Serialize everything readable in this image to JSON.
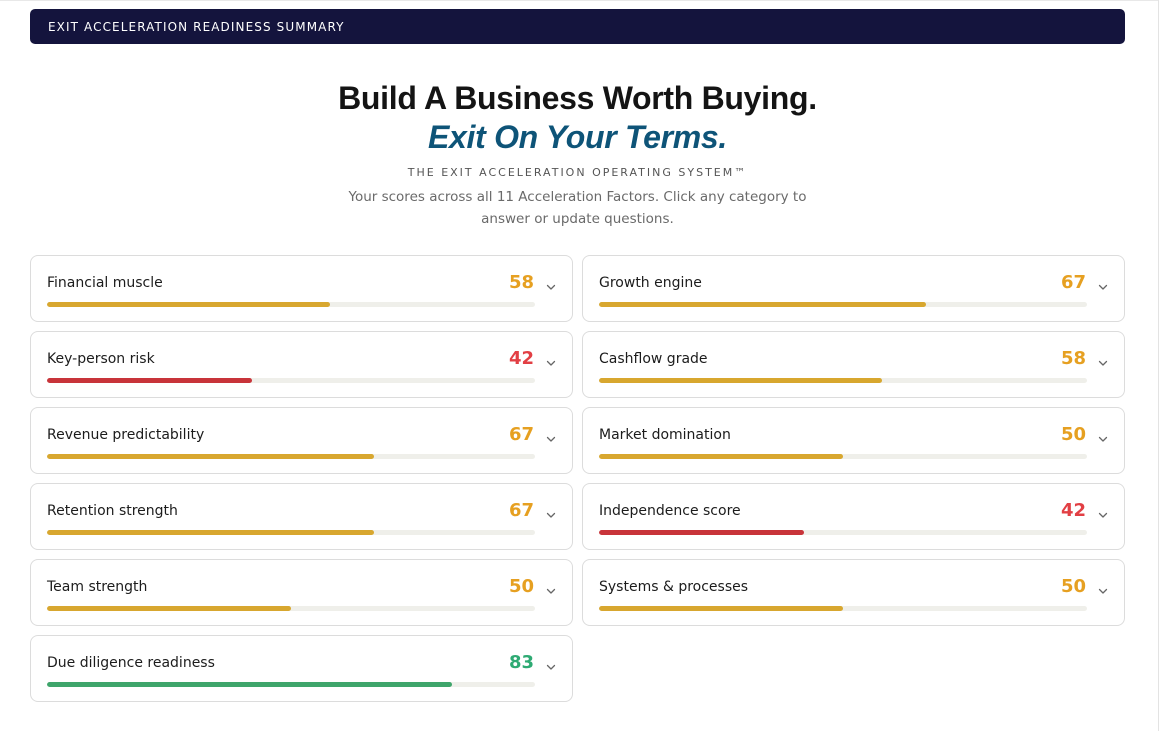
{
  "banner": {
    "title": "EXIT ACCELERATION READINESS SUMMARY"
  },
  "hero": {
    "headline": "Build A Business Worth Buying.",
    "subheadline": "Exit On Your Terms.",
    "eyebrow": "THE EXIT ACCELERATION OPERATING SYSTEM™",
    "intro": "Your scores across all 11 Acceleration Factors. Click any category to answer or update questions."
  },
  "colors": {
    "yellow": "#d8a72f",
    "red": "#c8343a",
    "green": "#3ea56b",
    "score_yellow": "#e6a021",
    "score_red": "#e23f44",
    "score_green": "#2eaa73"
  },
  "factors": [
    {
      "label": "Financial muscle",
      "score": "58",
      "level": 0.58,
      "status": "yellow"
    },
    {
      "label": "Growth engine",
      "score": "67",
      "level": 0.67,
      "status": "yellow"
    },
    {
      "label": "Key-person risk",
      "score": "42",
      "level": 0.42,
      "status": "red"
    },
    {
      "label": "Cashflow grade",
      "score": "58",
      "level": 0.58,
      "status": "yellow"
    },
    {
      "label": "Revenue predictability",
      "score": "67",
      "level": 0.67,
      "status": "yellow"
    },
    {
      "label": "Market domination",
      "score": "50",
      "level": 0.5,
      "status": "yellow"
    },
    {
      "label": "Retention strength",
      "score": "67",
      "level": 0.67,
      "status": "yellow"
    },
    {
      "label": "Independence score",
      "score": "42",
      "level": 0.42,
      "status": "red"
    },
    {
      "label": "Team strength",
      "score": "50",
      "level": 0.5,
      "status": "yellow"
    },
    {
      "label": "Systems & processes",
      "score": "50",
      "level": 0.5,
      "status": "yellow"
    },
    {
      "label": "Due diligence readiness",
      "score": "83",
      "level": 0.83,
      "status": "green"
    }
  ]
}
